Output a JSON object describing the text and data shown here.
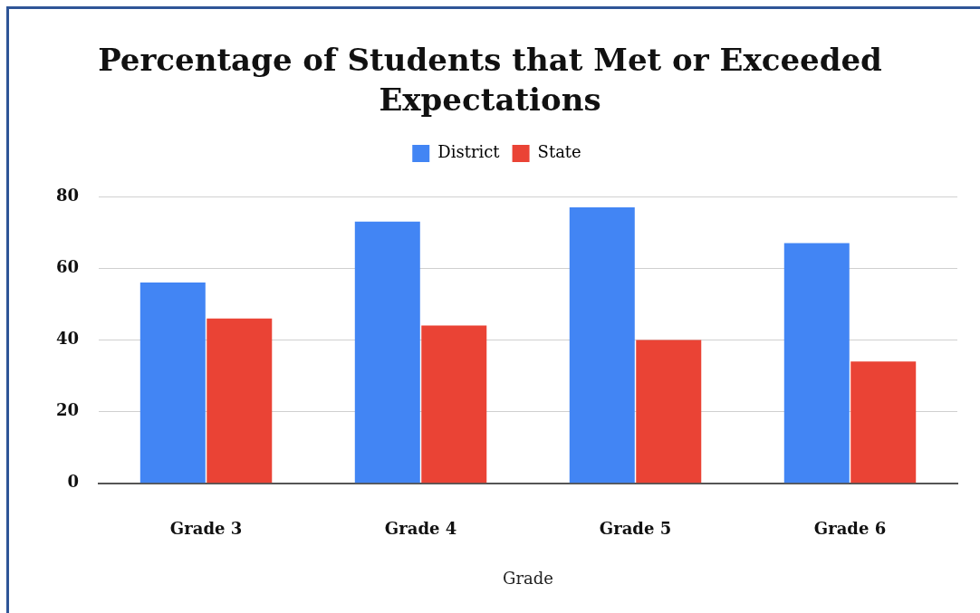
{
  "chart_data": {
    "type": "bar",
    "title": "Percentage of Students that Met or Exceeded Expectations",
    "xlabel": "Grade",
    "categories": [
      "Grade 3",
      "Grade 4",
      "Grade 5",
      "Grade 6"
    ],
    "series": [
      {
        "name": "District",
        "color": "#4285f4",
        "values": [
          56,
          73,
          77,
          67
        ]
      },
      {
        "name": "State",
        "color": "#ea4335",
        "values": [
          46,
          44,
          40,
          34
        ]
      }
    ],
    "ylim": [
      0,
      80
    ],
    "yticks": [
      0,
      20,
      40,
      60,
      80
    ],
    "grid": "y",
    "legend": "top"
  }
}
